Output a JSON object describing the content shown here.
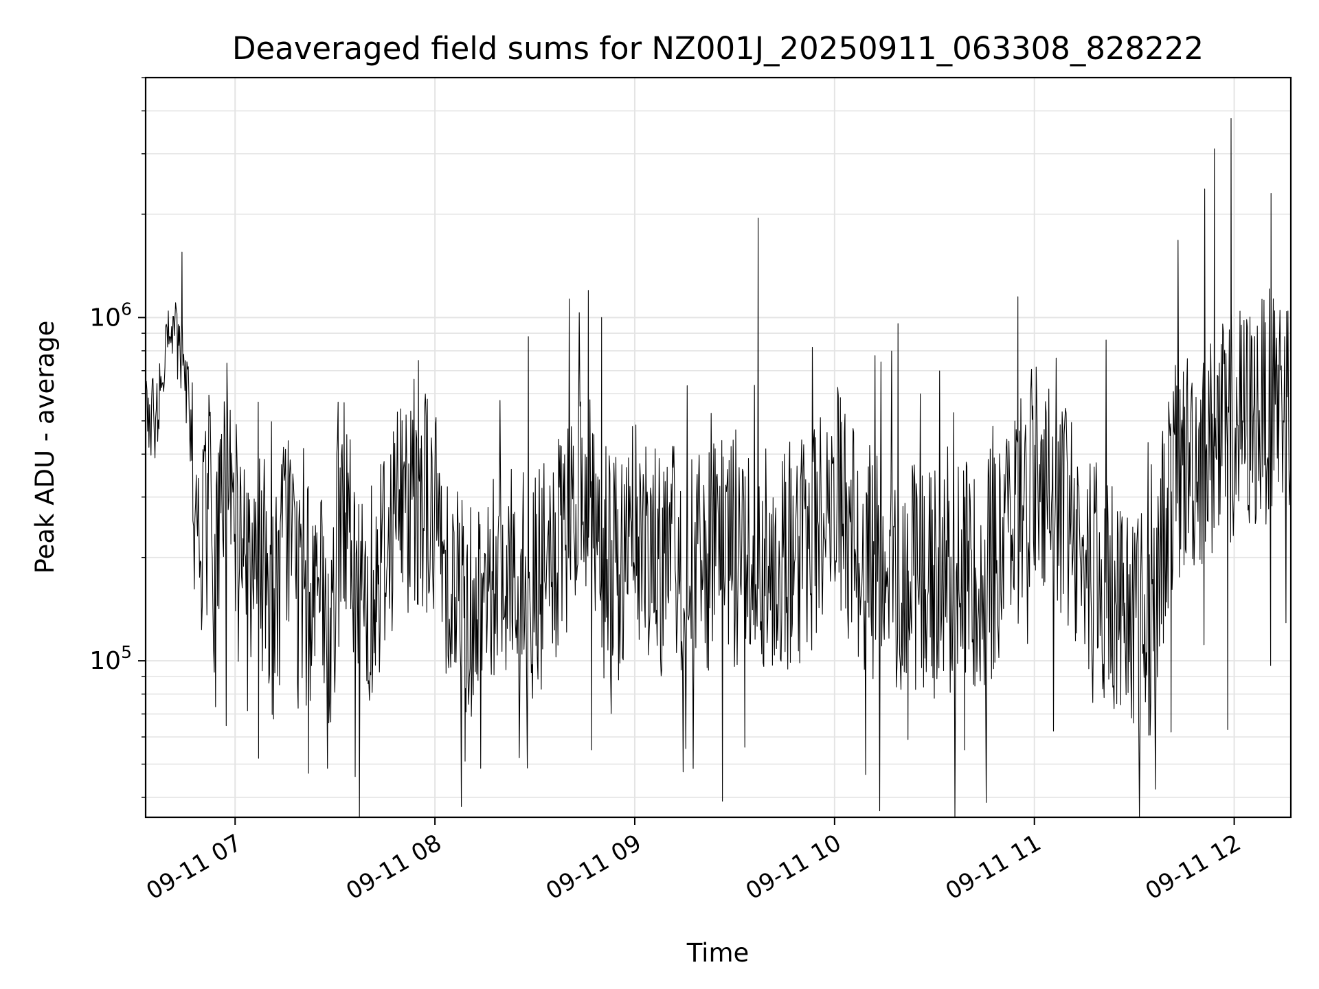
{
  "chart_data": {
    "type": "line",
    "title": "Deaveraged field sums for NZ001J_20250911_063308_828222",
    "xlabel": "Time",
    "ylabel": "Peak ADU - average",
    "yscale": "log",
    "ylim": [
      35000,
      5000000
    ],
    "xlim": [
      "2025-09-11 06:33:08",
      "2025-09-11 12:17:00"
    ],
    "xticks": [
      {
        "t": "2025-09-11 07:00",
        "label": "09-11 07"
      },
      {
        "t": "2025-09-11 08:00",
        "label": "09-11 08"
      },
      {
        "t": "2025-09-11 09:00",
        "label": "09-11 09"
      },
      {
        "t": "2025-09-11 10:00",
        "label": "09-11 10"
      },
      {
        "t": "2025-09-11 11:00",
        "label": "09-11 11"
      },
      {
        "t": "2025-09-11 12:00",
        "label": "09-11 12"
      }
    ],
    "yticks": [
      {
        "value": 100000,
        "base": "10",
        "exp": "5"
      },
      {
        "value": 1000000,
        "base": "10",
        "exp": "6"
      }
    ],
    "grid": true,
    "line_color": "#000000",
    "series": [
      {
        "x": [
          "2025-09-11 06:33:08",
          "2025-09-11 06:36",
          "2025-09-11 06:38",
          "2025-09-11 06:40",
          "2025-09-11 06:42",
          "2025-09-11 06:44",
          "2025-09-11 06:46",
          "2025-09-11 06:48",
          "2025-09-11 06:50",
          "2025-09-11 06:52",
          "2025-09-11 06:54",
          "2025-09-11 06:56",
          "2025-09-11 06:58",
          "2025-09-11 07:00",
          "2025-09-11 07:04",
          "2025-09-11 07:08",
          "2025-09-11 07:12",
          "2025-09-11 07:16",
          "2025-09-11 07:20",
          "2025-09-11 07:24",
          "2025-09-11 07:28",
          "2025-09-11 07:32",
          "2025-09-11 07:36",
          "2025-09-11 07:40",
          "2025-09-11 07:44",
          "2025-09-11 07:48",
          "2025-09-11 07:52",
          "2025-09-11 07:56",
          "2025-09-11 08:00",
          "2025-09-11 08:05",
          "2025-09-11 08:10",
          "2025-09-11 08:15",
          "2025-09-11 08:20",
          "2025-09-11 08:25",
          "2025-09-11 08:30",
          "2025-09-11 08:35",
          "2025-09-11 08:40",
          "2025-09-11 08:45",
          "2025-09-11 08:50",
          "2025-09-11 08:55",
          "2025-09-11 09:00",
          "2025-09-11 09:10",
          "2025-09-11 09:20",
          "2025-09-11 09:30",
          "2025-09-11 09:40",
          "2025-09-11 09:50",
          "2025-09-11 10:00",
          "2025-09-11 10:10",
          "2025-09-11 10:20",
          "2025-09-11 10:30",
          "2025-09-11 10:40",
          "2025-09-11 10:50",
          "2025-09-11 11:00",
          "2025-09-11 11:10",
          "2025-09-11 11:20",
          "2025-09-11 11:30",
          "2025-09-11 11:35",
          "2025-09-11 11:40",
          "2025-09-11 11:45",
          "2025-09-11 11:50",
          "2025-09-11 11:55",
          "2025-09-11 12:00",
          "2025-09-11 12:05",
          "2025-09-11 12:10",
          "2025-09-11 12:15"
        ],
        "values": [
          550000,
          500000,
          700000,
          1100000,
          900000,
          750000,
          600000,
          280000,
          180000,
          320000,
          150000,
          260000,
          400000,
          250000,
          150000,
          200000,
          140000,
          280000,
          120000,
          200000,
          90000,
          300000,
          170000,
          160000,
          200000,
          280000,
          300000,
          320000,
          250000,
          180000,
          140000,
          160000,
          200000,
          180000,
          160000,
          190000,
          220000,
          350000,
          200000,
          180000,
          230000,
          200000,
          190000,
          210000,
          200000,
          210000,
          300000,
          190000,
          180000,
          170000,
          175000,
          200000,
          380000,
          260000,
          170000,
          140000,
          120000,
          300000,
          380000,
          400000,
          420000,
          500000,
          500000,
          550000,
          600000
        ],
        "spikes_max": [
          {
            "t": "2025-09-11 06:44",
            "v": 1550000
          },
          {
            "t": "2025-09-11 07:55",
            "v": 750000
          },
          {
            "t": "2025-09-11 08:28",
            "v": 880000
          },
          {
            "t": "2025-09-11 08:46",
            "v": 1200000
          },
          {
            "t": "2025-09-11 08:50",
            "v": 1000000
          },
          {
            "t": "2025-09-11 09:37",
            "v": 1950000
          },
          {
            "t": "2025-09-11 10:19",
            "v": 960000
          },
          {
            "t": "2025-09-11 10:55",
            "v": 1150000
          },
          {
            "t": "2025-09-11 11:54",
            "v": 3100000
          },
          {
            "t": "2025-09-11 11:59",
            "v": 3800000
          },
          {
            "t": "2025-09-11 12:11",
            "v": 2300000
          }
        ],
        "spikes_min": [
          {
            "t": "2025-09-11 07:07",
            "v": 52000
          },
          {
            "t": "2025-09-11 07:22",
            "v": 47000
          },
          {
            "t": "2025-09-11 07:36",
            "v": 46000
          },
          {
            "t": "2025-09-11 08:09",
            "v": 51000
          },
          {
            "t": "2025-09-11 08:47",
            "v": 55000
          },
          {
            "t": "2025-09-11 09:33",
            "v": 56000
          },
          {
            "t": "2025-09-11 10:22",
            "v": 59000
          },
          {
            "t": "2025-09-11 10:39",
            "v": 55000
          },
          {
            "t": "2025-09-11 11:41",
            "v": 62000
          },
          {
            "t": "2025-09-11 11:58",
            "v": 63000
          }
        ]
      }
    ]
  }
}
